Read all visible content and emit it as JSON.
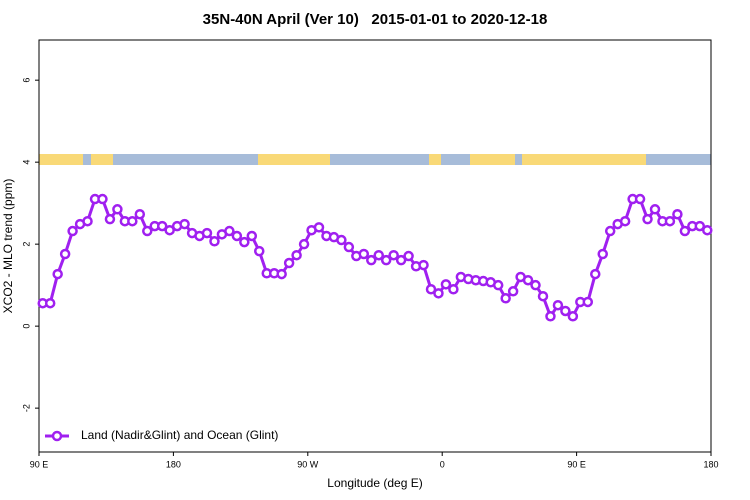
{
  "chart_data": {
    "type": "line",
    "title": "35N-40N April (Ver 10)   2015-01-01 to 2020-12-18",
    "x_label": "Longitude (deg E)",
    "y_label": "XCO2 - MLO trend (ppm)",
    "xlim": [
      90,
      540
    ],
    "xticks": [
      {
        "value": 90,
        "label": "90 E"
      },
      {
        "value": 180,
        "label": "180"
      },
      {
        "value": 270,
        "label": "90 W"
      },
      {
        "value": 360,
        "label": "0"
      },
      {
        "value": 450,
        "label": "90 E"
      },
      {
        "value": 540,
        "label": "180"
      }
    ],
    "ylim": [
      -3.07,
      6.98
    ],
    "yticks": [
      -2,
      0,
      2,
      4,
      6
    ],
    "grid": false,
    "legend": "bottomleft",
    "x": [
      92.5,
      97.5,
      102.5,
      107.5,
      112.5,
      117.5,
      122.5,
      127.5,
      132.5,
      137.5,
      142.5,
      147.5,
      152.5,
      157.5,
      162.5,
      167.5,
      172.5,
      177.5,
      182.5,
      187.5,
      192.5,
      197.5,
      202.5,
      207.5,
      212.5,
      217.5,
      222.5,
      227.5,
      232.5,
      237.5,
      242.5,
      247.5,
      252.5,
      257.5,
      262.5,
      267.5,
      272.5,
      277.5,
      282.5,
      287.5,
      292.5,
      297.5,
      302.5,
      307.5,
      312.5,
      317.5,
      322.5,
      327.5,
      332.5,
      337.5,
      342.5,
      347.5,
      352.5,
      357.5,
      362.5,
      367.5,
      372.5,
      377.5,
      382.5,
      387.5,
      392.5,
      397.5,
      402.5,
      407.5,
      412.5,
      417.5,
      422.5,
      427.5,
      432.5,
      437.5,
      442.5,
      447.5,
      452.5,
      457.5,
      462.5,
      467.5,
      472.5,
      477.5,
      482.5,
      487.5,
      492.5,
      497.5,
      502.5,
      507.5,
      512.5,
      517.5,
      522.5,
      527.5,
      532.5,
      537.5
    ],
    "series": [
      {
        "name": "Land (Nadir&Glint) and Ocean (Glint)",
        "color": "#a020f0",
        "values": [
          0.56,
          0.56,
          1.27,
          1.76,
          2.32,
          2.49,
          2.56,
          3.1,
          3.1,
          2.61,
          2.85,
          2.56,
          2.56,
          2.73,
          2.32,
          2.44,
          2.44,
          2.34,
          2.44,
          2.49,
          2.27,
          2.2,
          2.27,
          2.07,
          2.24,
          2.32,
          2.2,
          2.05,
          2.2,
          1.83,
          1.29,
          1.29,
          1.27,
          1.54,
          1.73,
          2.0,
          2.34,
          2.41,
          2.2,
          2.17,
          2.1,
          1.93,
          1.71,
          1.76,
          1.61,
          1.73,
          1.61,
          1.73,
          1.61,
          1.71,
          1.46,
          1.49,
          0.9,
          0.8,
          1.02,
          0.9,
          1.2,
          1.15,
          1.12,
          1.1,
          1.07,
          1.0,
          0.68,
          0.85,
          1.2,
          1.12,
          1.0,
          0.73,
          0.24,
          0.51,
          0.37,
          0.24,
          0.59,
          0.59,
          1.27,
          1.76,
          2.32,
          2.49,
          2.56,
          3.1,
          3.1,
          2.61,
          2.85,
          2.56,
          2.56,
          2.73,
          2.32,
          2.44,
          2.44,
          2.34
        ]
      }
    ]
  }
}
